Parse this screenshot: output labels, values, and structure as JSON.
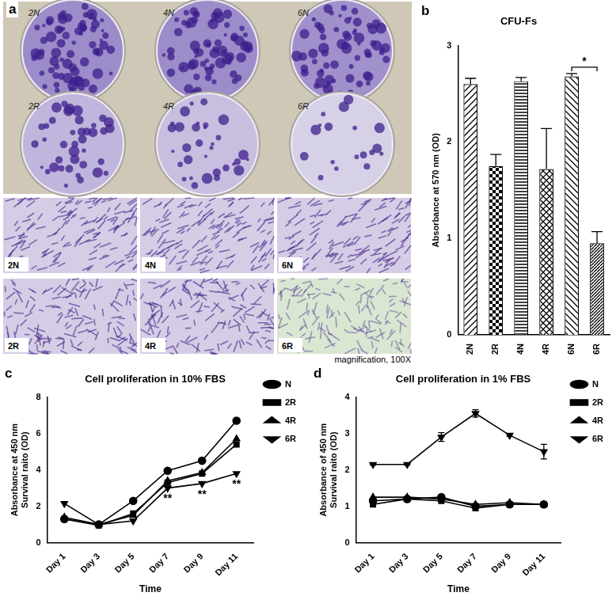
{
  "panel_a": {
    "panel_label": "a",
    "plate_labels": [
      "2N",
      "4N",
      "6N",
      "2R",
      "4R",
      "6R"
    ],
    "micrograph_labels": [
      "2N",
      "4N",
      "6N",
      "2R",
      "4R",
      "6R"
    ],
    "caption": "magnification, 100X"
  },
  "chart_data": [
    {
      "panel_label": "b",
      "type": "bar",
      "title": "CFU-Fs",
      "y_label": "Absorbance at 570 nm (OD)",
      "categories": [
        "2N",
        "2R",
        "4N",
        "4R",
        "6N",
        "6R"
      ],
      "values": [
        2.6,
        1.75,
        2.63,
        1.72,
        2.68,
        0.95
      ],
      "errors": [
        0.06,
        0.12,
        0.04,
        0.42,
        0.03,
        0.12
      ],
      "colors": [
        "#000000",
        "#000000",
        "#000000",
        "#000000",
        "#000000",
        "#000000"
      ],
      "ylim": [
        0,
        3
      ],
      "yticks": [
        0,
        1,
        2,
        3
      ],
      "grid": false,
      "annotations": [
        {
          "text": "*",
          "from": "6N",
          "to": "6R"
        }
      ]
    },
    {
      "panel_label": "c",
      "type": "line",
      "title": "Cell proliferation in 10% FBS",
      "x_label": "Time",
      "y_label": [
        "Absorbance at 450 nm",
        "Survival raito (OD)"
      ],
      "categories": [
        "Day 1",
        "Day 3",
        "Day 5",
        "Day 7",
        "Day 9",
        "Day 11"
      ],
      "series": [
        {
          "name": "N",
          "color": "#000000",
          "marker": "circle",
          "values": [
            1.3,
            1.0,
            2.3,
            3.95,
            4.5,
            6.7
          ]
        },
        {
          "name": "2R",
          "color": "#000000",
          "marker": "square",
          "values": [
            1.3,
            0.95,
            1.6,
            3.3,
            3.8,
            5.4
          ]
        },
        {
          "name": "4R",
          "color": "#000000",
          "marker": "triangle",
          "values": [
            1.4,
            1.0,
            1.5,
            3.4,
            3.85,
            5.7
          ]
        },
        {
          "name": "6R",
          "color": "#000000",
          "marker": "triangle-down",
          "values": [
            2.15,
            1.0,
            1.2,
            3.0,
            3.25,
            3.8
          ]
        }
      ],
      "ylim": [
        0,
        8
      ],
      "yticks": [
        0,
        2,
        4,
        6,
        8
      ],
      "grid": false,
      "legend": "right",
      "annotations": [
        {
          "text": "**",
          "series": "6R",
          "category": "Day 7"
        },
        {
          "text": "**",
          "series": "6R",
          "category": "Day 9"
        },
        {
          "text": "**",
          "series": "6R",
          "category": "Day 11"
        }
      ]
    },
    {
      "panel_label": "d",
      "type": "line",
      "title": "Cell proliferation in 1% FBS",
      "x_label": "Time",
      "y_label": [
        "Absorbance of 450 nm",
        "Survival raito (OD)"
      ],
      "categories": [
        "Day 1",
        "Day 3",
        "Day 5",
        "Day 7",
        "Day 9",
        "Day 11"
      ],
      "series": [
        {
          "name": "N",
          "color": "#000000",
          "marker": "circle",
          "values": [
            1.15,
            1.2,
            1.25,
            1.0,
            1.05,
            1.05
          ]
        },
        {
          "name": "2R",
          "color": "#000000",
          "marker": "square",
          "values": [
            1.05,
            1.2,
            1.15,
            0.95,
            1.05,
            1.05
          ]
        },
        {
          "name": "4R",
          "color": "#000000",
          "marker": "triangle",
          "values": [
            1.25,
            1.25,
            1.2,
            1.05,
            1.1,
            1.05
          ]
        },
        {
          "name": "6R",
          "color": "#000000",
          "marker": "triangle-down",
          "values": [
            2.15,
            2.15,
            2.9,
            3.55,
            2.95,
            2.5
          ],
          "errors": [
            0.02,
            0.02,
            0.12,
            0.1,
            0.03,
            0.2
          ]
        }
      ],
      "ylim": [
        0,
        4
      ],
      "yticks": [
        0,
        1,
        2,
        3,
        4
      ],
      "grid": false,
      "legend": "right"
    }
  ]
}
